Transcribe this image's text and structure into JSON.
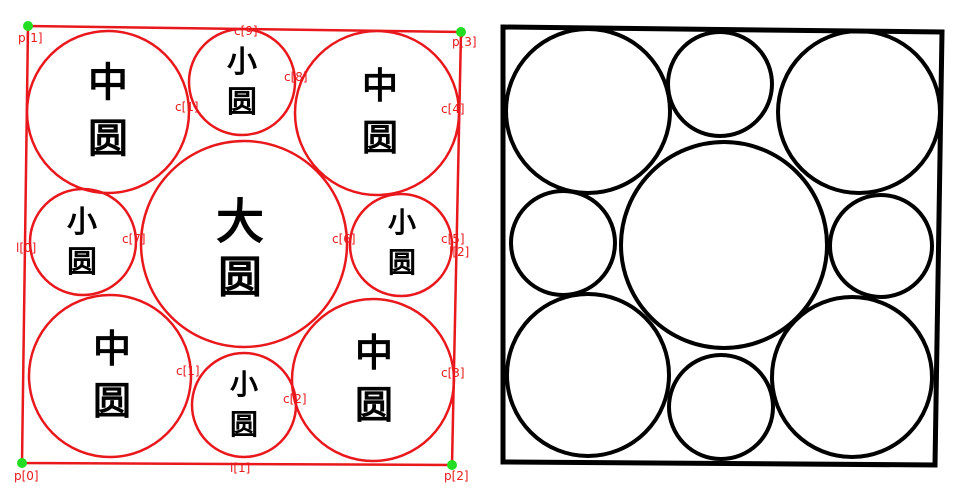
{
  "colors": {
    "overlay": "#e8181c",
    "point": "#22dd22",
    "ink": "#000000"
  },
  "corner_points": [
    {
      "id": "p0",
      "label": "p[0]"
    },
    {
      "id": "p1",
      "label": "p[1]"
    },
    {
      "id": "p2",
      "label": "p[2]"
    },
    {
      "id": "p3",
      "label": "p[3]"
    }
  ],
  "circles": [
    {
      "id": "c1",
      "label": "c[1]",
      "text": [
        "中",
        "圆"
      ]
    },
    {
      "id": "c2",
      "label": "c[2]",
      "text": [
        "小",
        "圆"
      ]
    },
    {
      "id": "c3",
      "label": "c[3]",
      "text": [
        "中",
        "圆"
      ]
    },
    {
      "id": "c4",
      "label": "c[4]",
      "text": [
        "中",
        "圆"
      ]
    },
    {
      "id": "c5",
      "label": "c[5]",
      "text": [
        "小",
        "圆"
      ]
    },
    {
      "id": "c6",
      "label": "c[6]",
      "text": [
        "大",
        "圆"
      ]
    },
    {
      "id": "c7",
      "label": "c[7]",
      "text": [
        "小",
        "圆"
      ]
    },
    {
      "id": "c8",
      "label": "c[8]",
      "text": [
        "中",
        "圆"
      ]
    },
    {
      "id": "c9",
      "label": "c[9]",
      "text": [
        "小",
        "圆"
      ]
    },
    {
      "id": "c10",
      "label": "c[1]",
      "text": [
        "中",
        "圆"
      ]
    }
  ],
  "edge_labels": [
    {
      "id": "l0",
      "label": "l[0]"
    },
    {
      "id": "l1",
      "label": "l[1]"
    },
    {
      "id": "l2",
      "label": "l[2]"
    },
    {
      "id": "l3",
      "label": "l[3]"
    }
  ]
}
